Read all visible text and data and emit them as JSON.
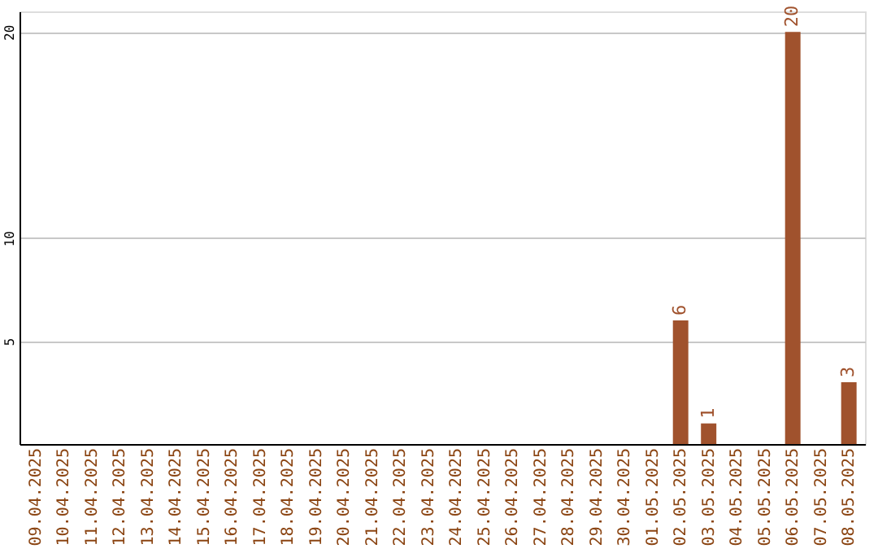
{
  "chart_data": {
    "type": "bar",
    "categories": [
      "09.04.2025",
      "10.04.2025",
      "11.04.2025",
      "12.04.2025",
      "13.04.2025",
      "14.04.2025",
      "15.04.2025",
      "16.04.2025",
      "17.04.2025",
      "18.04.2025",
      "19.04.2025",
      "20.04.2025",
      "21.04.2025",
      "22.04.2025",
      "23.04.2025",
      "24.04.2025",
      "25.04.2025",
      "26.04.2025",
      "27.04.2025",
      "28.04.2025",
      "29.04.2025",
      "30.04.2025",
      "01.05.2025",
      "02.05.2025",
      "03.05.2025",
      "04.05.2025",
      "05.05.2025",
      "06.05.2025",
      "07.05.2025",
      "08.05.2025"
    ],
    "values": [
      0,
      0,
      0,
      0,
      0,
      0,
      0,
      0,
      0,
      0,
      0,
      0,
      0,
      0,
      0,
      0,
      0,
      0,
      0,
      0,
      0,
      0,
      0,
      6,
      1,
      0,
      0,
      20,
      0,
      3
    ],
    "value_labels": [
      null,
      null,
      null,
      null,
      null,
      null,
      null,
      null,
      null,
      null,
      null,
      null,
      null,
      null,
      null,
      null,
      null,
      null,
      null,
      null,
      null,
      null,
      null,
      "6",
      "1",
      null,
      null,
      "20",
      null,
      "3"
    ],
    "color": "#a0522d",
    "ylim": [
      0,
      21
    ],
    "yticks": [
      5,
      10,
      20
    ],
    "grid": "y"
  }
}
